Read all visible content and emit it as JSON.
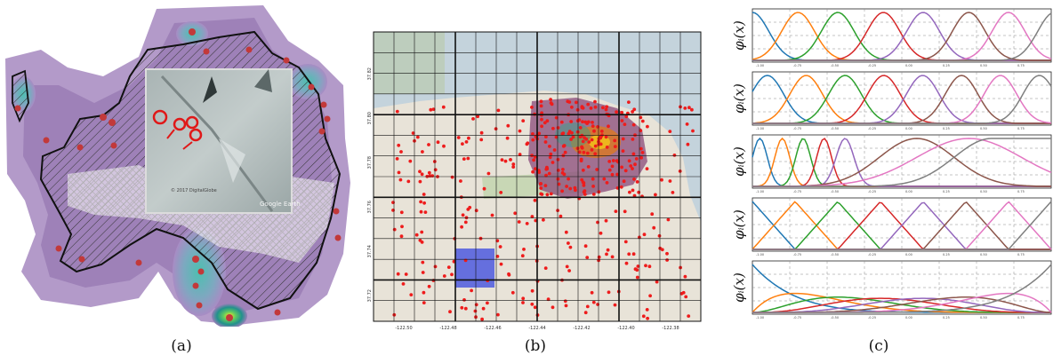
{
  "captions": {
    "a": "(a)",
    "b": "(b)",
    "c": "(c)"
  },
  "panel_a": {
    "inset_watermark": "Google Earth",
    "inset_copyright": "© 2017 DigitalGlobe"
  },
  "panel_b": {
    "x_ticks": [
      "-122.50",
      "-122.48",
      "-122.46",
      "-122.44",
      "-122.42",
      "-122.40",
      "-122.38"
    ],
    "y_ticks": [
      "37.82",
      "37.80",
      "37.78",
      "37.76",
      "37.74",
      "37.72"
    ]
  },
  "chart_data": [
    {
      "type": "line",
      "title": "",
      "ylabel": "φᵢ(x)",
      "xlim": [
        -1,
        1
      ],
      "ylim": [
        0,
        1
      ],
      "grid": true,
      "basis": "gaussian-uniform"
    },
    {
      "type": "line",
      "title": "",
      "ylabel": "φᵢ(x)",
      "xlim": [
        -1,
        1
      ],
      "ylim": [
        0,
        1
      ],
      "grid": true,
      "basis": "gaussian-shifted"
    },
    {
      "type": "line",
      "title": "",
      "ylabel": "φᵢ(x)",
      "xlim": [
        -1,
        1
      ],
      "ylim": [
        0,
        1
      ],
      "grid": true,
      "basis": "gaussian-nonuniform"
    },
    {
      "type": "line",
      "title": "",
      "ylabel": "φᵢ(x)",
      "xlim": [
        -1,
        1
      ],
      "ylim": [
        0,
        1
      ],
      "grid": true,
      "basis": "triangular"
    },
    {
      "type": "line",
      "title": "",
      "ylabel": "φᵢ(x)",
      "xlim": [
        -1,
        1
      ],
      "ylim": [
        0,
        1
      ],
      "grid": true,
      "basis": "bernstein"
    }
  ],
  "chart_x_ticks": [
    "-1.00",
    "-0.75",
    "-0.50",
    "-0.25",
    "0.00",
    "0.25",
    "0.50",
    "0.75"
  ],
  "series_colors": [
    "#1f77b4",
    "#ff7f0e",
    "#2ca02c",
    "#d62728",
    "#9467bd",
    "#8c564b",
    "#e377c2",
    "#7f7f7f"
  ]
}
